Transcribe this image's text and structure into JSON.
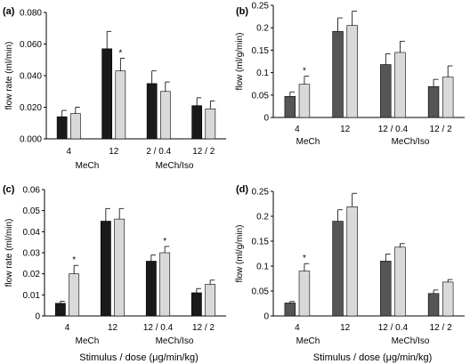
{
  "chart_data": [
    {
      "panel": "(a)",
      "type": "bar",
      "ylabel": "flow rate (ml/min)",
      "yticks": [
        "0.000",
        "0.020",
        "0.040",
        "0.060",
        "0.080"
      ],
      "ylim": [
        0,
        0.08
      ],
      "dose_labels": [
        "4",
        "12",
        "2 / 0.4",
        "12 / 2"
      ],
      "group_labels": [
        "MeCh",
        "MeCh/Iso"
      ],
      "xlabel": "",
      "series": [
        {
          "color": "#1a1a1a",
          "values": [
            0.014,
            0.057,
            0.035,
            0.021
          ],
          "errors": [
            0.004,
            0.011,
            0.008,
            0.005
          ]
        },
        {
          "color": "#d9d9d9",
          "values": [
            0.016,
            0.043,
            0.03,
            0.019
          ],
          "errors": [
            0.004,
            0.008,
            0.006,
            0.005
          ]
        }
      ],
      "stars": [
        1
      ]
    },
    {
      "panel": "(b)",
      "type": "bar",
      "ylabel": "flow (ml/g/min)",
      "yticks": [
        "0",
        "0.05",
        "0.1",
        "0.15",
        "0.2",
        "0.25"
      ],
      "ylim": [
        0,
        0.25
      ],
      "dose_labels": [
        "4",
        "12",
        "12 / 0.4",
        "12 / 2"
      ],
      "group_labels": [
        "MeCh",
        "MeCh/Iso"
      ],
      "xlabel": "",
      "series": [
        {
          "color": "#555555",
          "values": [
            0.047,
            0.192,
            0.118,
            0.069
          ],
          "errors": [
            0.01,
            0.03,
            0.024,
            0.016
          ]
        },
        {
          "color": "#d9d9d9",
          "values": [
            0.074,
            0.205,
            0.145,
            0.09
          ],
          "errors": [
            0.018,
            0.032,
            0.025,
            0.025
          ]
        }
      ],
      "stars": [
        0
      ]
    },
    {
      "panel": "(c)",
      "type": "bar",
      "ylabel": "flow rate (ml/min)",
      "yticks": [
        "0",
        "0.01",
        "0.02",
        "0.03",
        "0.04",
        "0.05",
        "0.06"
      ],
      "ylim": [
        0,
        0.06
      ],
      "dose_labels": [
        "4",
        "12",
        "12 / 0.4",
        "12 / 2"
      ],
      "group_labels": [
        "MeCh",
        "MeCh/Iso"
      ],
      "xlabel": "Stimulus / dose (μg/min/kg)",
      "series": [
        {
          "color": "#1a1a1a",
          "values": [
            0.006,
            0.045,
            0.026,
            0.011
          ],
          "errors": [
            0.001,
            0.006,
            0.003,
            0.002
          ]
        },
        {
          "color": "#d9d9d9",
          "values": [
            0.02,
            0.046,
            0.03,
            0.015
          ],
          "errors": [
            0.004,
            0.005,
            0.003,
            0.002
          ]
        }
      ],
      "stars": [
        0,
        2
      ]
    },
    {
      "panel": "(d)",
      "type": "bar",
      "ylabel": "flow (ml/g/min)",
      "yticks": [
        "0",
        "0.05",
        "0.1",
        "0.15",
        "0.2",
        "0.25"
      ],
      "ylim": [
        0,
        0.25
      ],
      "dose_labels": [
        "4",
        "12",
        "12 / 0.4",
        "12 / 2"
      ],
      "group_labels": [
        "MeCh",
        "MeCh/Iso"
      ],
      "xlabel": "Stimulus / dose (μg/min/kg)",
      "series": [
        {
          "color": "#555555",
          "values": [
            0.026,
            0.19,
            0.11,
            0.045
          ],
          "errors": [
            0.003,
            0.023,
            0.014,
            0.007
          ]
        },
        {
          "color": "#d9d9d9",
          "values": [
            0.09,
            0.219,
            0.138,
            0.068
          ],
          "errors": [
            0.015,
            0.027,
            0.007,
            0.005
          ]
        }
      ],
      "stars": [
        0
      ]
    }
  ]
}
